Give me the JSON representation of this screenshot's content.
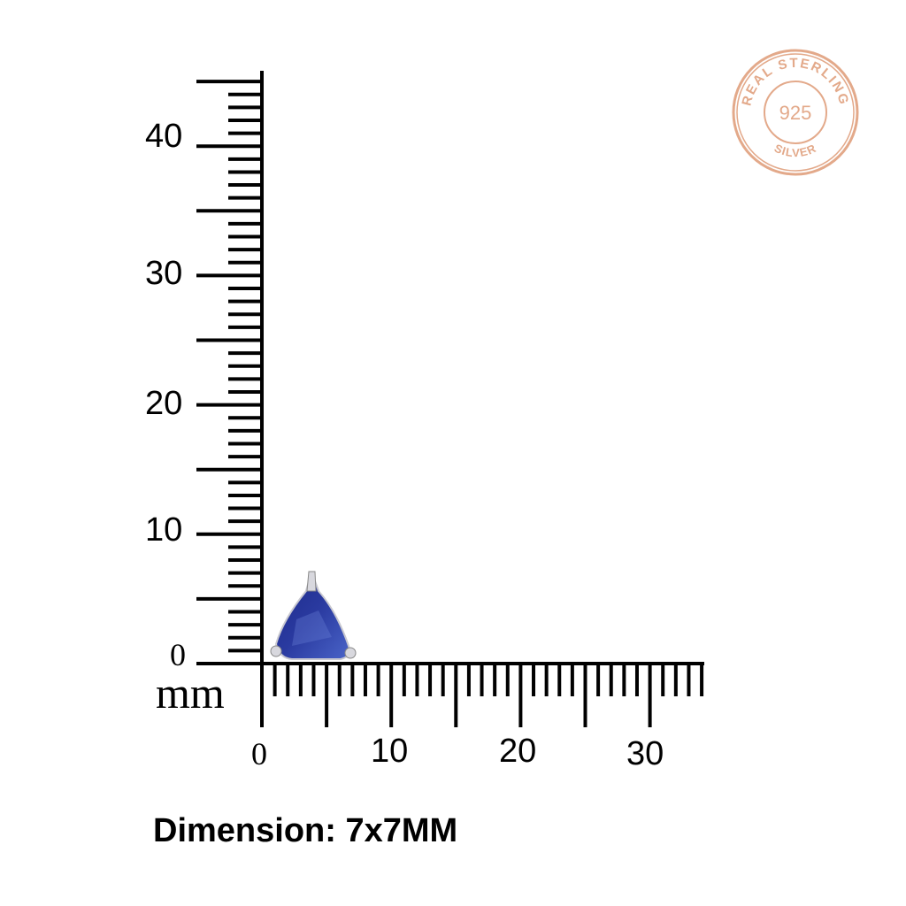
{
  "ruler": {
    "unit": "mm",
    "y_labels": [
      "0",
      "10",
      "20",
      "30",
      "40"
    ],
    "x_labels": [
      "0",
      "10",
      "20",
      "30"
    ],
    "y_max_mm": 45,
    "x_max_mm": 34
  },
  "product": {
    "dimension_text": "Dimension: 7x7MM",
    "gem_color": "#2a3aa0",
    "setting_color": "#c8c8d0",
    "size_mm": [
      7,
      7
    ]
  },
  "stamp": {
    "top_text": "REAL STERLING",
    "center_text": "925",
    "bottom_text": "SILVER",
    "color": "#e3a98a"
  }
}
